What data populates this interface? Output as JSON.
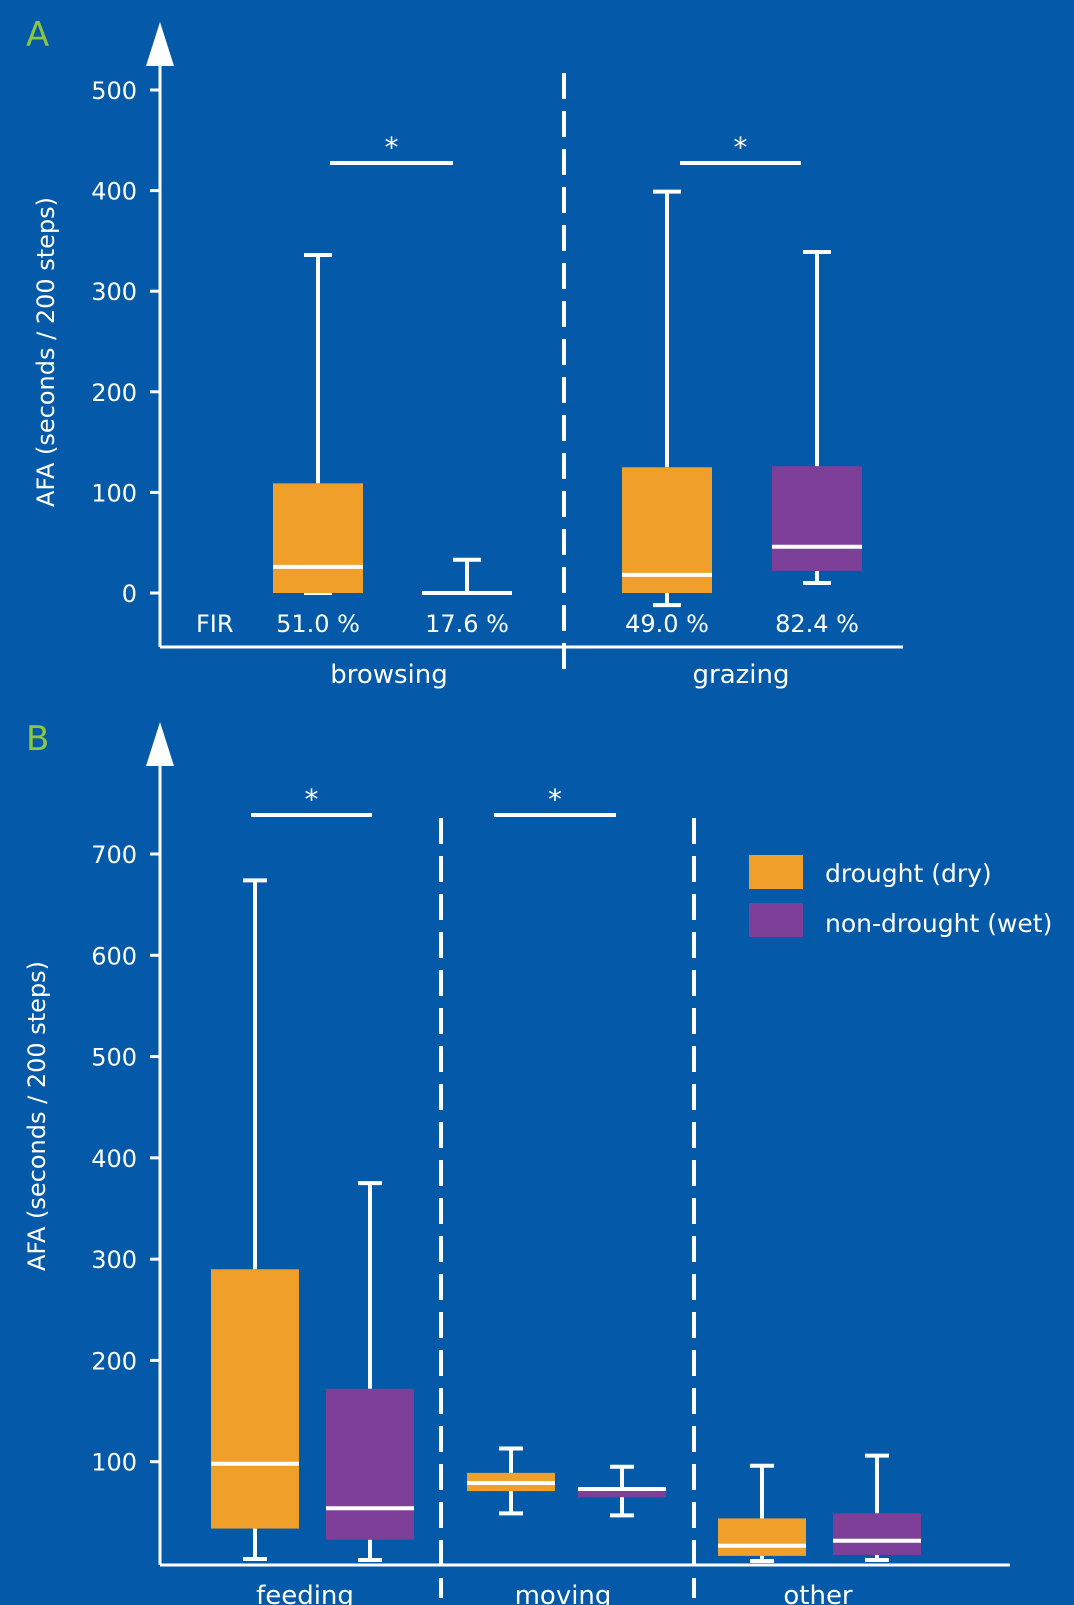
{
  "colors": {
    "background": "#045aa8",
    "axis": "#ffffff",
    "panel_label": "#8dc63f",
    "drought": "#f0a02a",
    "non_drought": "#7e3f98"
  },
  "legend": {
    "drought": "drought (dry)",
    "non_drought": "non-drought (wet)"
  },
  "chart_data": [
    {
      "type": "box",
      "panel": "A",
      "ylabel": "AFA (seconds / 200 steps)",
      "ylim": [
        0,
        500
      ],
      "yticks": [
        0,
        100,
        200,
        300,
        400,
        500
      ],
      "fir_label": "FIR",
      "groups": [
        {
          "category": "browsing",
          "boxes": [
            {
              "series": "drought",
              "min": 0,
              "q1": 0,
              "median": 26,
              "q3": 109,
              "max": 336,
              "fir": "51.0 %"
            },
            {
              "series": "non_drought",
              "min": 0,
              "q1": 0,
              "median": 0,
              "q3": 0,
              "max": 33,
              "fir": "17.6 %"
            }
          ],
          "significance": "*"
        },
        {
          "category": "grazing",
          "boxes": [
            {
              "series": "drought",
              "min": -12,
              "q1": 0,
              "median": 18,
              "q3": 125,
              "max": 399,
              "fir": "49.0 %"
            },
            {
              "series": "non_drought",
              "min": 10,
              "q1": 22,
              "median": 46,
              "q3": 126,
              "max": 339,
              "fir": "82.4 %"
            }
          ],
          "significance": "*"
        }
      ]
    },
    {
      "type": "box",
      "panel": "B",
      "ylabel": "AFA (seconds / 200 steps)",
      "ylim": [
        0,
        700
      ],
      "yticks": [
        100,
        200,
        300,
        400,
        500,
        600,
        700
      ],
      "groups": [
        {
          "category": "feeding",
          "boxes": [
            {
              "series": "drought",
              "min": 4,
              "q1": 34,
              "median": 98,
              "q3": 290,
              "max": 674
            },
            {
              "series": "non_drought",
              "min": 3,
              "q1": 23,
              "median": 54,
              "q3": 172,
              "max": 375
            }
          ],
          "significance": "*"
        },
        {
          "category": "moving",
          "boxes": [
            {
              "series": "drought",
              "min": 49,
              "q1": 71,
              "median": 79,
              "q3": 89,
              "max": 113
            },
            {
              "series": "non_drought",
              "min": 47,
              "q1": 65,
              "median": 73,
              "q3": 75,
              "max": 95
            }
          ],
          "significance": "*"
        },
        {
          "category": "other",
          "boxes": [
            {
              "series": "drought",
              "min": 2,
              "q1": 7,
              "median": 17,
              "q3": 44,
              "max": 96
            },
            {
              "series": "non_drought",
              "min": 3,
              "q1": 8,
              "median": 22,
              "q3": 49,
              "max": 106
            }
          ],
          "significance": ""
        }
      ]
    }
  ]
}
